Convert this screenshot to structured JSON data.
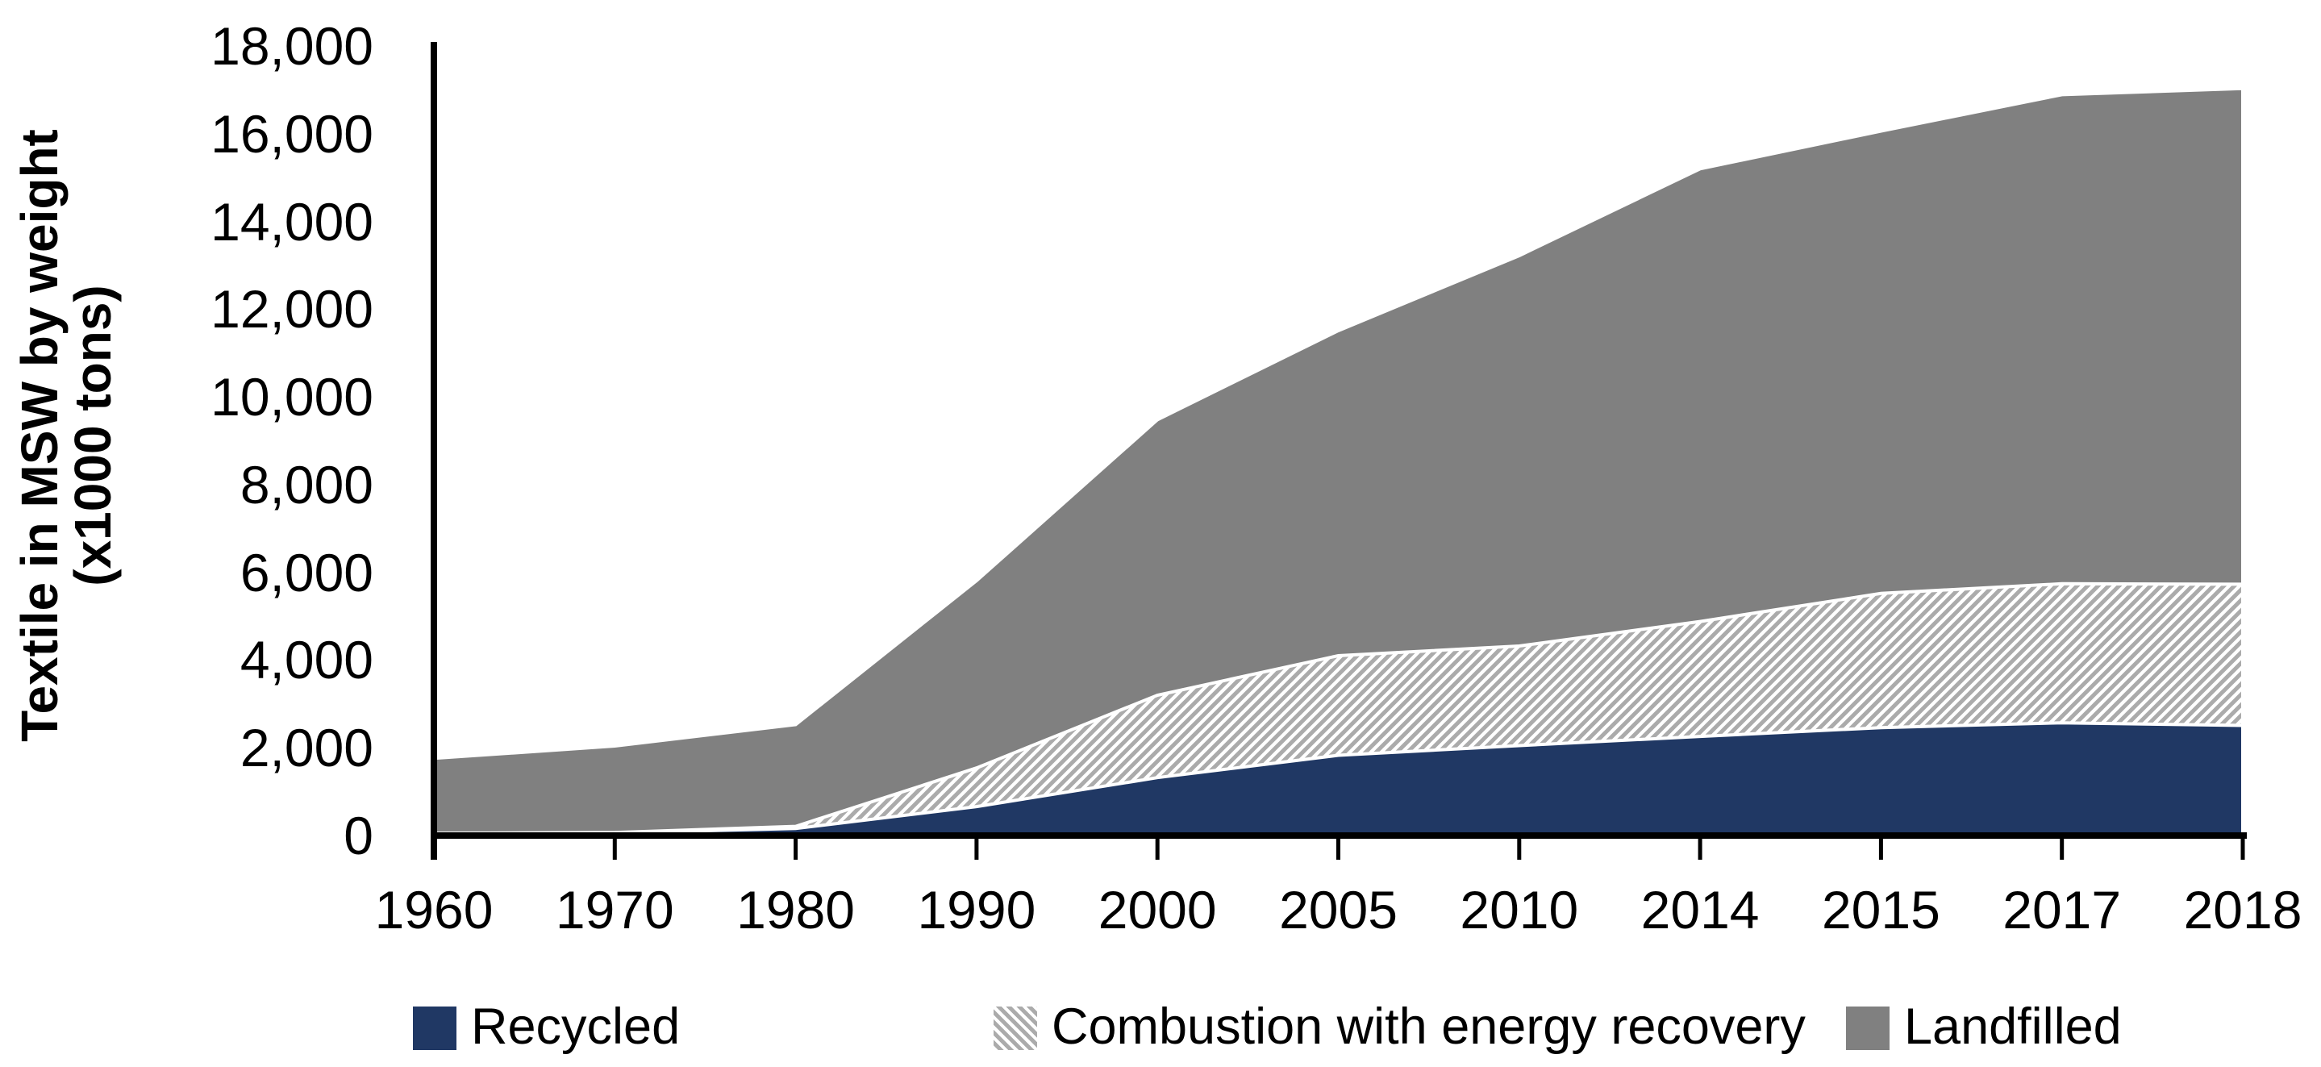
{
  "chart_data": {
    "type": "area",
    "stacked": true,
    "title": "",
    "ylabel_line1": "Textile in MSW by weight",
    "ylabel_line2": "(x1000 tons)",
    "xlabel": "",
    "categories": [
      "1960",
      "1970",
      "1980",
      "1990",
      "2000",
      "2005",
      "2010",
      "2014",
      "2015",
      "2017",
      "2018"
    ],
    "series": [
      {
        "name": "Recycled",
        "values": [
          50,
          60,
          160,
          660,
          1320,
          1830,
          2050,
          2260,
          2460,
          2570,
          2510
        ],
        "fill": "solid",
        "color": "#203864"
      },
      {
        "name": "Combustion with energy recovery",
        "values": [
          0,
          10,
          50,
          880,
          1880,
          2270,
          2270,
          2620,
          3060,
          3170,
          3220
        ],
        "fill": "diagonal-hatch",
        "hatch_stripe_color": "#ababab",
        "hatch_background": "#ffffff"
      },
      {
        "name": "Landfilled",
        "values": [
          1710,
          1970,
          2320,
          4270,
          6280,
          7410,
          8900,
          10320,
          10540,
          11150,
          11300
        ],
        "fill": "solid",
        "color": "#808080"
      }
    ],
    "stack_totals": [
      1760,
      2040,
      2530,
      5810,
      9480,
      11510,
      13220,
      15200,
      16060,
      16890,
      17030
    ],
    "y_ticks": [
      "0",
      "2,000",
      "4,000",
      "6,000",
      "8,000",
      "10,000",
      "12,000",
      "14,000",
      "16,000",
      "18,000"
    ],
    "ylim": [
      0,
      18000
    ],
    "grid": false,
    "legend_position": "bottom",
    "axis_color": "#000000",
    "text_color": "#000000",
    "separator_line_color": "#ffffff",
    "background": "#ffffff"
  }
}
